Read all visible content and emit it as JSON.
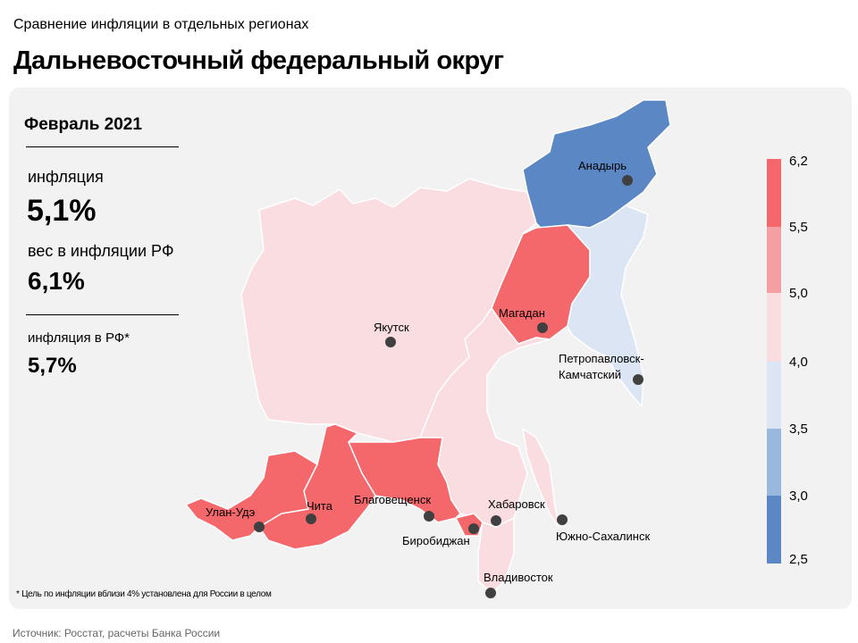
{
  "header": {
    "supertitle": "Сравнение инфляции в отдельных регионах",
    "title": "Дальневосточный федеральный округ"
  },
  "panel": {
    "period": "Февраль 2021",
    "inflation_label": "инфляция",
    "inflation_value": "5,1%",
    "weight_label": "вес в инфляции РФ",
    "weight_value": "6,1%",
    "rf_label": "инфляция в РФ*",
    "rf_value": "5,7%"
  },
  "legend": {
    "ticks": [
      "6,2",
      "5,5",
      "5,0",
      "4,0",
      "3,5",
      "3,0",
      "2,5"
    ],
    "colors": [
      "#f4676b",
      "#f4a0a2",
      "#fadde1",
      "#dbe5f4",
      "#9ab8dd",
      "#5b87c5"
    ]
  },
  "cities": [
    "Анадырь",
    "Магадан",
    "Якутск",
    "Петропавловск-Камчатский",
    "Улан-Удэ",
    "Чита",
    "Благовещенск",
    "Хабаровск",
    "Биробиджан",
    "Южно-Сахалинск",
    "Владивосток"
  ],
  "colors": {
    "high": "#f4676b",
    "mid": "#fadde1",
    "low": "#dbe5f4",
    "lowest": "#5b87c5"
  },
  "footnote": "* Цель по инфляции вблизи 4% установлена для России в целом",
  "source": "Источник: Росстат, расчеты Банка России"
}
